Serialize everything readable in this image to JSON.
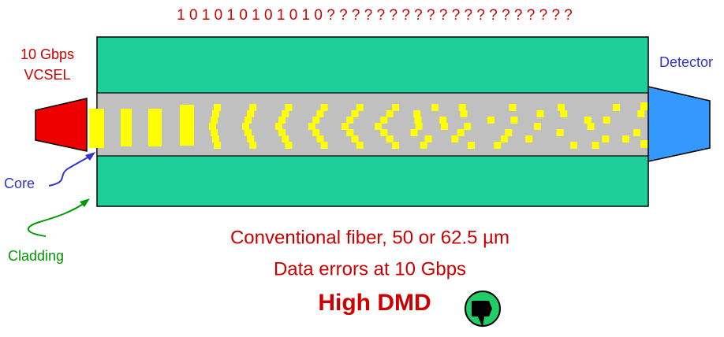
{
  "bit_stream": "1 0 1 0 1 0 1 0 1 0 1 0 ? ? ? ? ? ? ? ? ? ? ? ? ? ? ? ? ? ? ? ?",
  "source": {
    "line1": "10 Gbps",
    "line2": "VCSEL"
  },
  "detector": "Detector",
  "core_label": "Core",
  "cladding_label": "Cladding",
  "caption": {
    "line1": "Conventional fiber, 50 or 62.5 µm",
    "line2": "Data errors at 10 Gbps",
    "line3": "High DMD"
  }
}
